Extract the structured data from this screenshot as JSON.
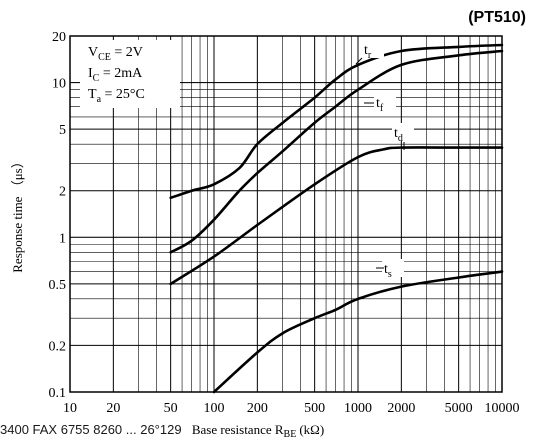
{
  "chart_data": {
    "type": "line",
    "title": "(PT510)",
    "xlabel": "Base resistance R",
    "xlabel_sub": "BE",
    "xlabel_unit": "(kΩ)",
    "ylabel": "Response time （μs）",
    "x_scale": "log",
    "y_scale": "log",
    "xlim": [
      10,
      10000
    ],
    "ylim": [
      0.1,
      20
    ],
    "x_ticks": [
      10,
      20,
      50,
      100,
      200,
      500,
      1000,
      2000,
      5000,
      10000
    ],
    "x_tick_labels": [
      "10",
      "20",
      "50",
      "100",
      "200",
      "500",
      "1000",
      "2000",
      "5000",
      "10000"
    ],
    "y_ticks": [
      0.1,
      0.2,
      0.5,
      1,
      2,
      5,
      10,
      20
    ],
    "y_tick_labels": [
      "0.1",
      "0.2",
      "0.5",
      "1",
      "2",
      "5",
      "10",
      "20"
    ],
    "grid": true,
    "conditions": [
      {
        "main": "V",
        "sub": "CE",
        "rest": " = 2V"
      },
      {
        "main": "I",
        "sub": "C",
        "rest": " = 2mA"
      },
      {
        "main": "T",
        "sub": "a",
        "rest": " = 25°C"
      }
    ],
    "series": [
      {
        "name": "t",
        "sub": "r",
        "x": [
          50,
          70,
          100,
          150,
          200,
          300,
          500,
          700,
          1000,
          2000,
          5000,
          10000
        ],
        "y": [
          1.8,
          2.0,
          2.2,
          2.8,
          4.0,
          5.5,
          8.0,
          10.5,
          13.0,
          16.0,
          17.0,
          17.5
        ]
      },
      {
        "name": "t",
        "sub": "f",
        "x": [
          50,
          70,
          100,
          150,
          200,
          300,
          500,
          700,
          1000,
          2000,
          5000,
          10000
        ],
        "y": [
          0.8,
          0.95,
          1.3,
          2.0,
          2.6,
          3.6,
          5.5,
          7.0,
          9.0,
          13.0,
          15.0,
          16.0
        ]
      },
      {
        "name": "t",
        "sub": "d",
        "x": [
          50,
          100,
          200,
          500,
          1000,
          1500,
          2000,
          5000,
          10000
        ],
        "y": [
          0.5,
          0.75,
          1.2,
          2.2,
          3.3,
          3.7,
          3.8,
          3.8,
          3.8
        ]
      },
      {
        "name": "t",
        "sub": "s",
        "x": [
          100,
          200,
          300,
          500,
          700,
          1000,
          2000,
          5000,
          10000
        ],
        "y": [
          0.1,
          0.18,
          0.24,
          0.3,
          0.34,
          0.4,
          0.48,
          0.55,
          0.6
        ]
      }
    ],
    "footer_text": "3400 FAX 6755 8260 ... 26°129"
  }
}
